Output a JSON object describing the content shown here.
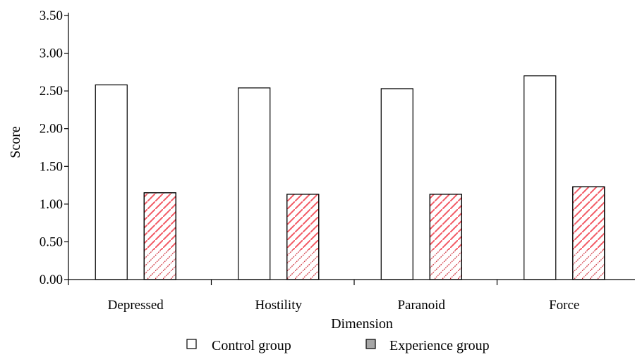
{
  "chart_data": {
    "type": "bar",
    "xlabel": "Dimension",
    "ylabel": "Score",
    "categories": [
      "Depressed",
      "Hostility",
      "Paranoid",
      "Force"
    ],
    "ylim": [
      0,
      3.5
    ],
    "yticks": [
      "0.00",
      "0.50",
      "1.00",
      "1.50",
      "2.00",
      "2.50",
      "3.00",
      "3.50"
    ],
    "grid": false,
    "legend_position": "bottom",
    "series": [
      {
        "name": "Control group",
        "values": [
          2.58,
          2.54,
          2.53,
          2.7
        ],
        "fill": "#ffffff",
        "legend_swatch": "#ffffff"
      },
      {
        "name": "Experience group",
        "values": [
          1.15,
          1.13,
          1.13,
          1.23
        ],
        "fill": "hatch-red",
        "legend_swatch": "#a6a6a6"
      }
    ]
  },
  "colors": {
    "axis": "#000000",
    "hatch": "#f25a64",
    "hatch_dense": "#c0101c"
  }
}
